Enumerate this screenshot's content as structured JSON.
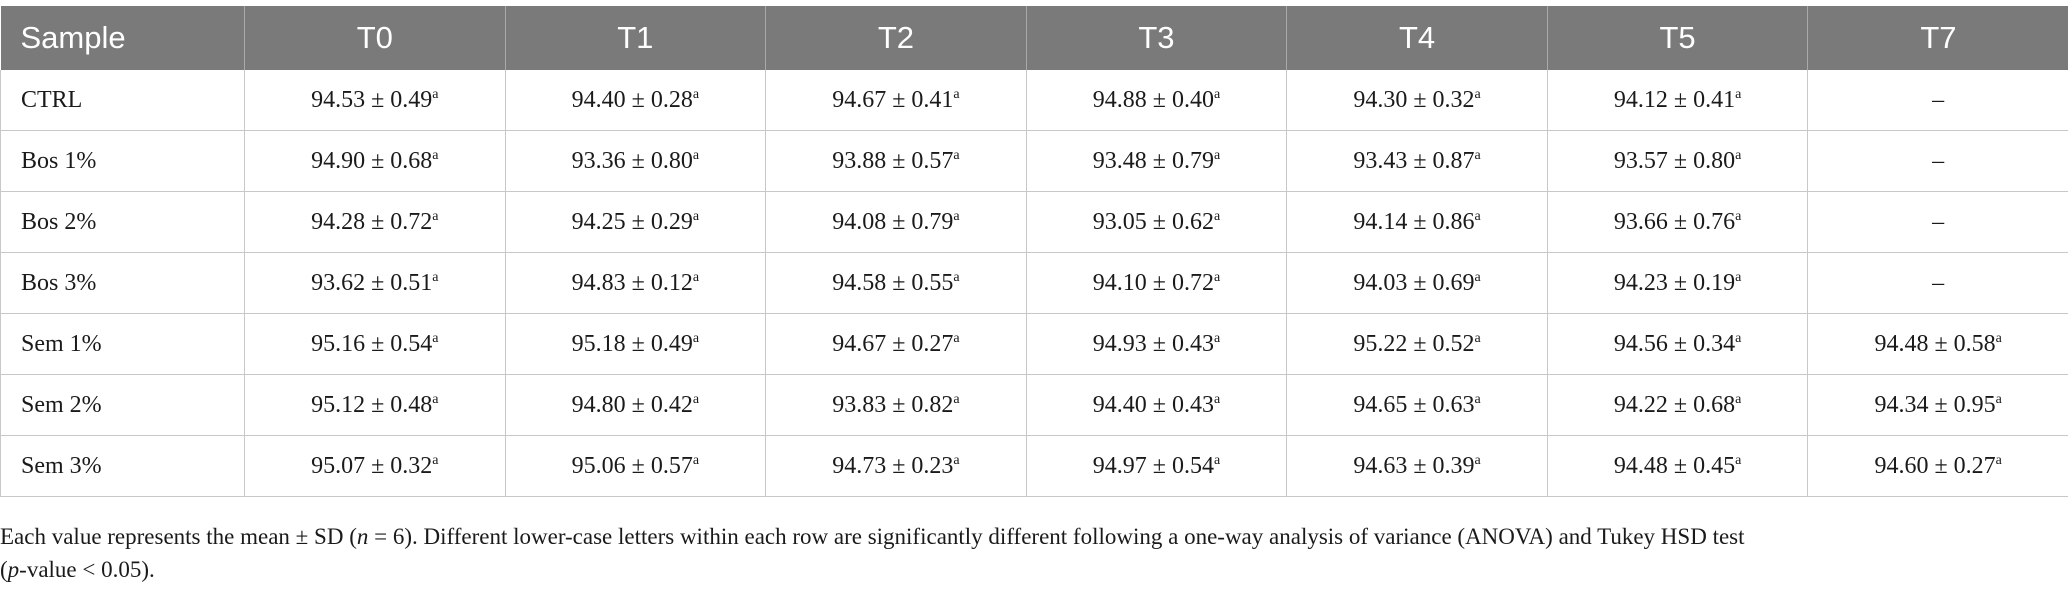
{
  "table": {
    "headers": [
      "Sample",
      "T0",
      "T1",
      "T2",
      "T3",
      "T4",
      "T5",
      "T7"
    ],
    "rows": [
      {
        "sample": "CTRL",
        "cells": [
          {
            "v": "94.53 ± 0.49",
            "s": "a"
          },
          {
            "v": "94.40 ± 0.28",
            "s": "a"
          },
          {
            "v": "94.67 ± 0.41",
            "s": "a"
          },
          {
            "v": "94.88 ± 0.40",
            "s": "a"
          },
          {
            "v": "94.30 ± 0.32",
            "s": "a"
          },
          {
            "v": "94.12 ± 0.41",
            "s": "a"
          },
          {
            "v": "–",
            "s": ""
          }
        ]
      },
      {
        "sample": "Bos 1%",
        "cells": [
          {
            "v": "94.90 ± 0.68",
            "s": "a"
          },
          {
            "v": "93.36 ± 0.80",
            "s": "a"
          },
          {
            "v": "93.88 ± 0.57",
            "s": "a"
          },
          {
            "v": "93.48 ± 0.79",
            "s": "a"
          },
          {
            "v": "93.43 ± 0.87",
            "s": "a"
          },
          {
            "v": "93.57 ± 0.80",
            "s": "a"
          },
          {
            "v": "–",
            "s": ""
          }
        ]
      },
      {
        "sample": "Bos 2%",
        "cells": [
          {
            "v": "94.28 ± 0.72",
            "s": "a"
          },
          {
            "v": "94.25 ± 0.29",
            "s": "a"
          },
          {
            "v": "94.08 ± 0.79",
            "s": "a"
          },
          {
            "v": "93.05 ± 0.62",
            "s": "a"
          },
          {
            "v": "94.14 ± 0.86",
            "s": "a"
          },
          {
            "v": "93.66 ± 0.76",
            "s": "a"
          },
          {
            "v": "–",
            "s": ""
          }
        ]
      },
      {
        "sample": "Bos 3%",
        "cells": [
          {
            "v": "93.62 ± 0.51",
            "s": "a"
          },
          {
            "v": "94.83 ± 0.12",
            "s": "a"
          },
          {
            "v": "94.58 ± 0.55",
            "s": "a"
          },
          {
            "v": "94.10 ± 0.72",
            "s": "a"
          },
          {
            "v": "94.03 ± 0.69",
            "s": "a"
          },
          {
            "v": "94.23 ± 0.19",
            "s": "a"
          },
          {
            "v": "–",
            "s": ""
          }
        ]
      },
      {
        "sample": "Sem 1%",
        "cells": [
          {
            "v": "95.16 ± 0.54",
            "s": "a"
          },
          {
            "v": "95.18 ± 0.49",
            "s": "a"
          },
          {
            "v": "94.67 ± 0.27",
            "s": "a"
          },
          {
            "v": "94.93 ± 0.43",
            "s": "a"
          },
          {
            "v": "95.22 ± 0.52",
            "s": "a"
          },
          {
            "v": "94.56 ± 0.34",
            "s": "a"
          },
          {
            "v": "94.48 ± 0.58",
            "s": "a"
          }
        ]
      },
      {
        "sample": "Sem 2%",
        "cells": [
          {
            "v": "95.12 ± 0.48",
            "s": "a"
          },
          {
            "v": "94.80 ± 0.42",
            "s": "a"
          },
          {
            "v": "93.83 ± 0.82",
            "s": "a"
          },
          {
            "v": "94.40 ± 0.43",
            "s": "a"
          },
          {
            "v": "94.65 ± 0.63",
            "s": "a"
          },
          {
            "v": "94.22 ± 0.68",
            "s": "a"
          },
          {
            "v": "94.34 ± 0.95",
            "s": "a"
          }
        ]
      },
      {
        "sample": "Sem 3%",
        "cells": [
          {
            "v": "95.07 ± 0.32",
            "s": "a"
          },
          {
            "v": "95.06 ± 0.57",
            "s": "a"
          },
          {
            "v": "94.73 ± 0.23",
            "s": "a"
          },
          {
            "v": "94.97 ± 0.54",
            "s": "a"
          },
          {
            "v": "94.63 ± 0.39",
            "s": "a"
          },
          {
            "v": "94.48 ± 0.45",
            "s": "a"
          },
          {
            "v": "94.60 ± 0.27",
            "s": "a"
          }
        ]
      }
    ]
  },
  "footnote": {
    "line1": "Each value represents the mean ± SD (",
    "n_var": "n",
    "n_eq": " = 6). Different lower-case letters within each row are significantly different following a one-way analysis of variance (ANOVA) and Tukey HSD test",
    "p_open": "(",
    "p_var": "p",
    "p_rest": "-value < 0.05)."
  },
  "colors": {
    "header_bg": "#7a7a7a",
    "header_text": "#ffffff",
    "grid": "#c8c8c8"
  }
}
